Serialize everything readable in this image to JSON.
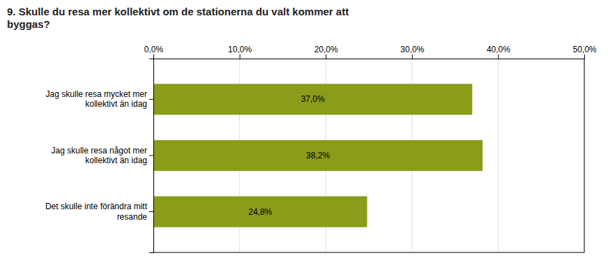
{
  "chart_data": {
    "type": "bar",
    "orientation": "horizontal",
    "title": "9. Skulle du resa mer kollektivt om de stationerna du valt kommer att\nbyggas?",
    "categories": [
      "Jag skulle resa mycket mer\nkollektivt än idag",
      "Jag skulle resa något mer\nkollektivt än idag",
      "Det skulle inte förändra mitt\nresande"
    ],
    "values": [
      37.0,
      38.2,
      24.8
    ],
    "value_labels": [
      "37,0%",
      "38,2%",
      "24,8%"
    ],
    "data_labels": true,
    "color": "#8B9B1A",
    "xlim": [
      0,
      50
    ],
    "xticks": [
      {
        "value": 0,
        "label": "0,0%"
      },
      {
        "value": 10,
        "label": "10,0%"
      },
      {
        "value": 20,
        "label": "20,0%"
      },
      {
        "value": 30,
        "label": "30,0%"
      },
      {
        "value": 40,
        "label": "40,0%"
      },
      {
        "value": 50,
        "label": "50,0%"
      }
    ],
    "grid": true
  }
}
